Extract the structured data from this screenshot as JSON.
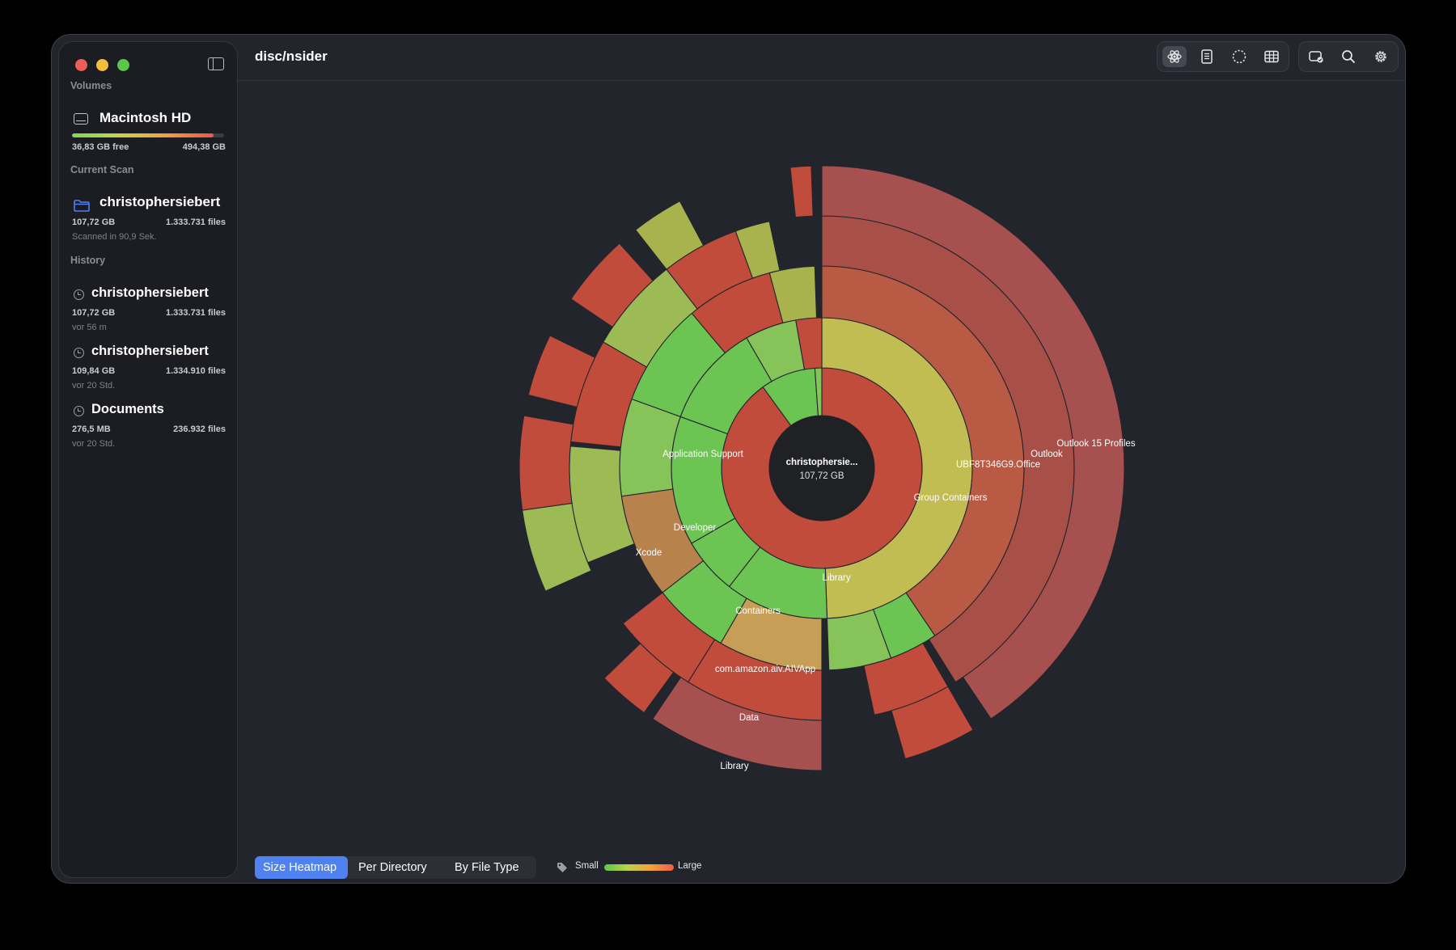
{
  "app": {
    "title": "disc/nsider"
  },
  "sidebar": {
    "volumes_title": "Volumes",
    "volume": {
      "name": "Macintosh HD",
      "free": "36,83 GB free",
      "total": "494,38 GB",
      "usage_fraction": 0.93
    },
    "current_title": "Current Scan",
    "current": {
      "name": "christophersiebert",
      "size": "107,72 GB",
      "files": "1.333.731 files",
      "note": "Scanned in 90,9 Sek."
    },
    "history_title": "History",
    "history": [
      {
        "name": "christophersiebert",
        "size": "107,72 GB",
        "files": "1.333.731 files",
        "when": "vor 56 m"
      },
      {
        "name": "christophersiebert",
        "size": "109,84 GB",
        "files": "1.334.910 files",
        "when": "vor 20 Std."
      },
      {
        "name": "Documents",
        "size": "276,5 MB",
        "files": "236.932 files",
        "when": "vor 20 Std."
      }
    ]
  },
  "toolbar": {
    "icons": [
      "atom-icon",
      "document-icon",
      "dashed-circle-icon",
      "table-icon",
      "disk-check-icon",
      "search-icon",
      "gear-icon"
    ],
    "active": "atom-icon"
  },
  "center": {
    "name": "christophersie...",
    "size": "107,72 GB"
  },
  "labels": {
    "library": "Library",
    "group_containers": "Group Containers",
    "ubf": "UBF8T346G9.Office",
    "outlook": "Outlook",
    "outlook_profiles": "Outlook 15 Profiles",
    "application_support": "Application Support",
    "developer": "Developer",
    "xcode": "Xcode",
    "containers": "Containers",
    "amazon": "com.amazon.aiv.AIVApp",
    "data": "Data",
    "library2": "Library"
  },
  "bottom": {
    "modes": [
      "Size Heatmap",
      "Per Directory",
      "By File Type"
    ],
    "active_mode": "Size Heatmap",
    "legend_small": "Small",
    "legend_large": "Large"
  },
  "colors": {
    "background": "#23252c",
    "accent": "#4f82f0",
    "heat_large": "#c04a3c",
    "heat_medium": "#c2bd52",
    "heat_small": "#6cc452"
  }
}
